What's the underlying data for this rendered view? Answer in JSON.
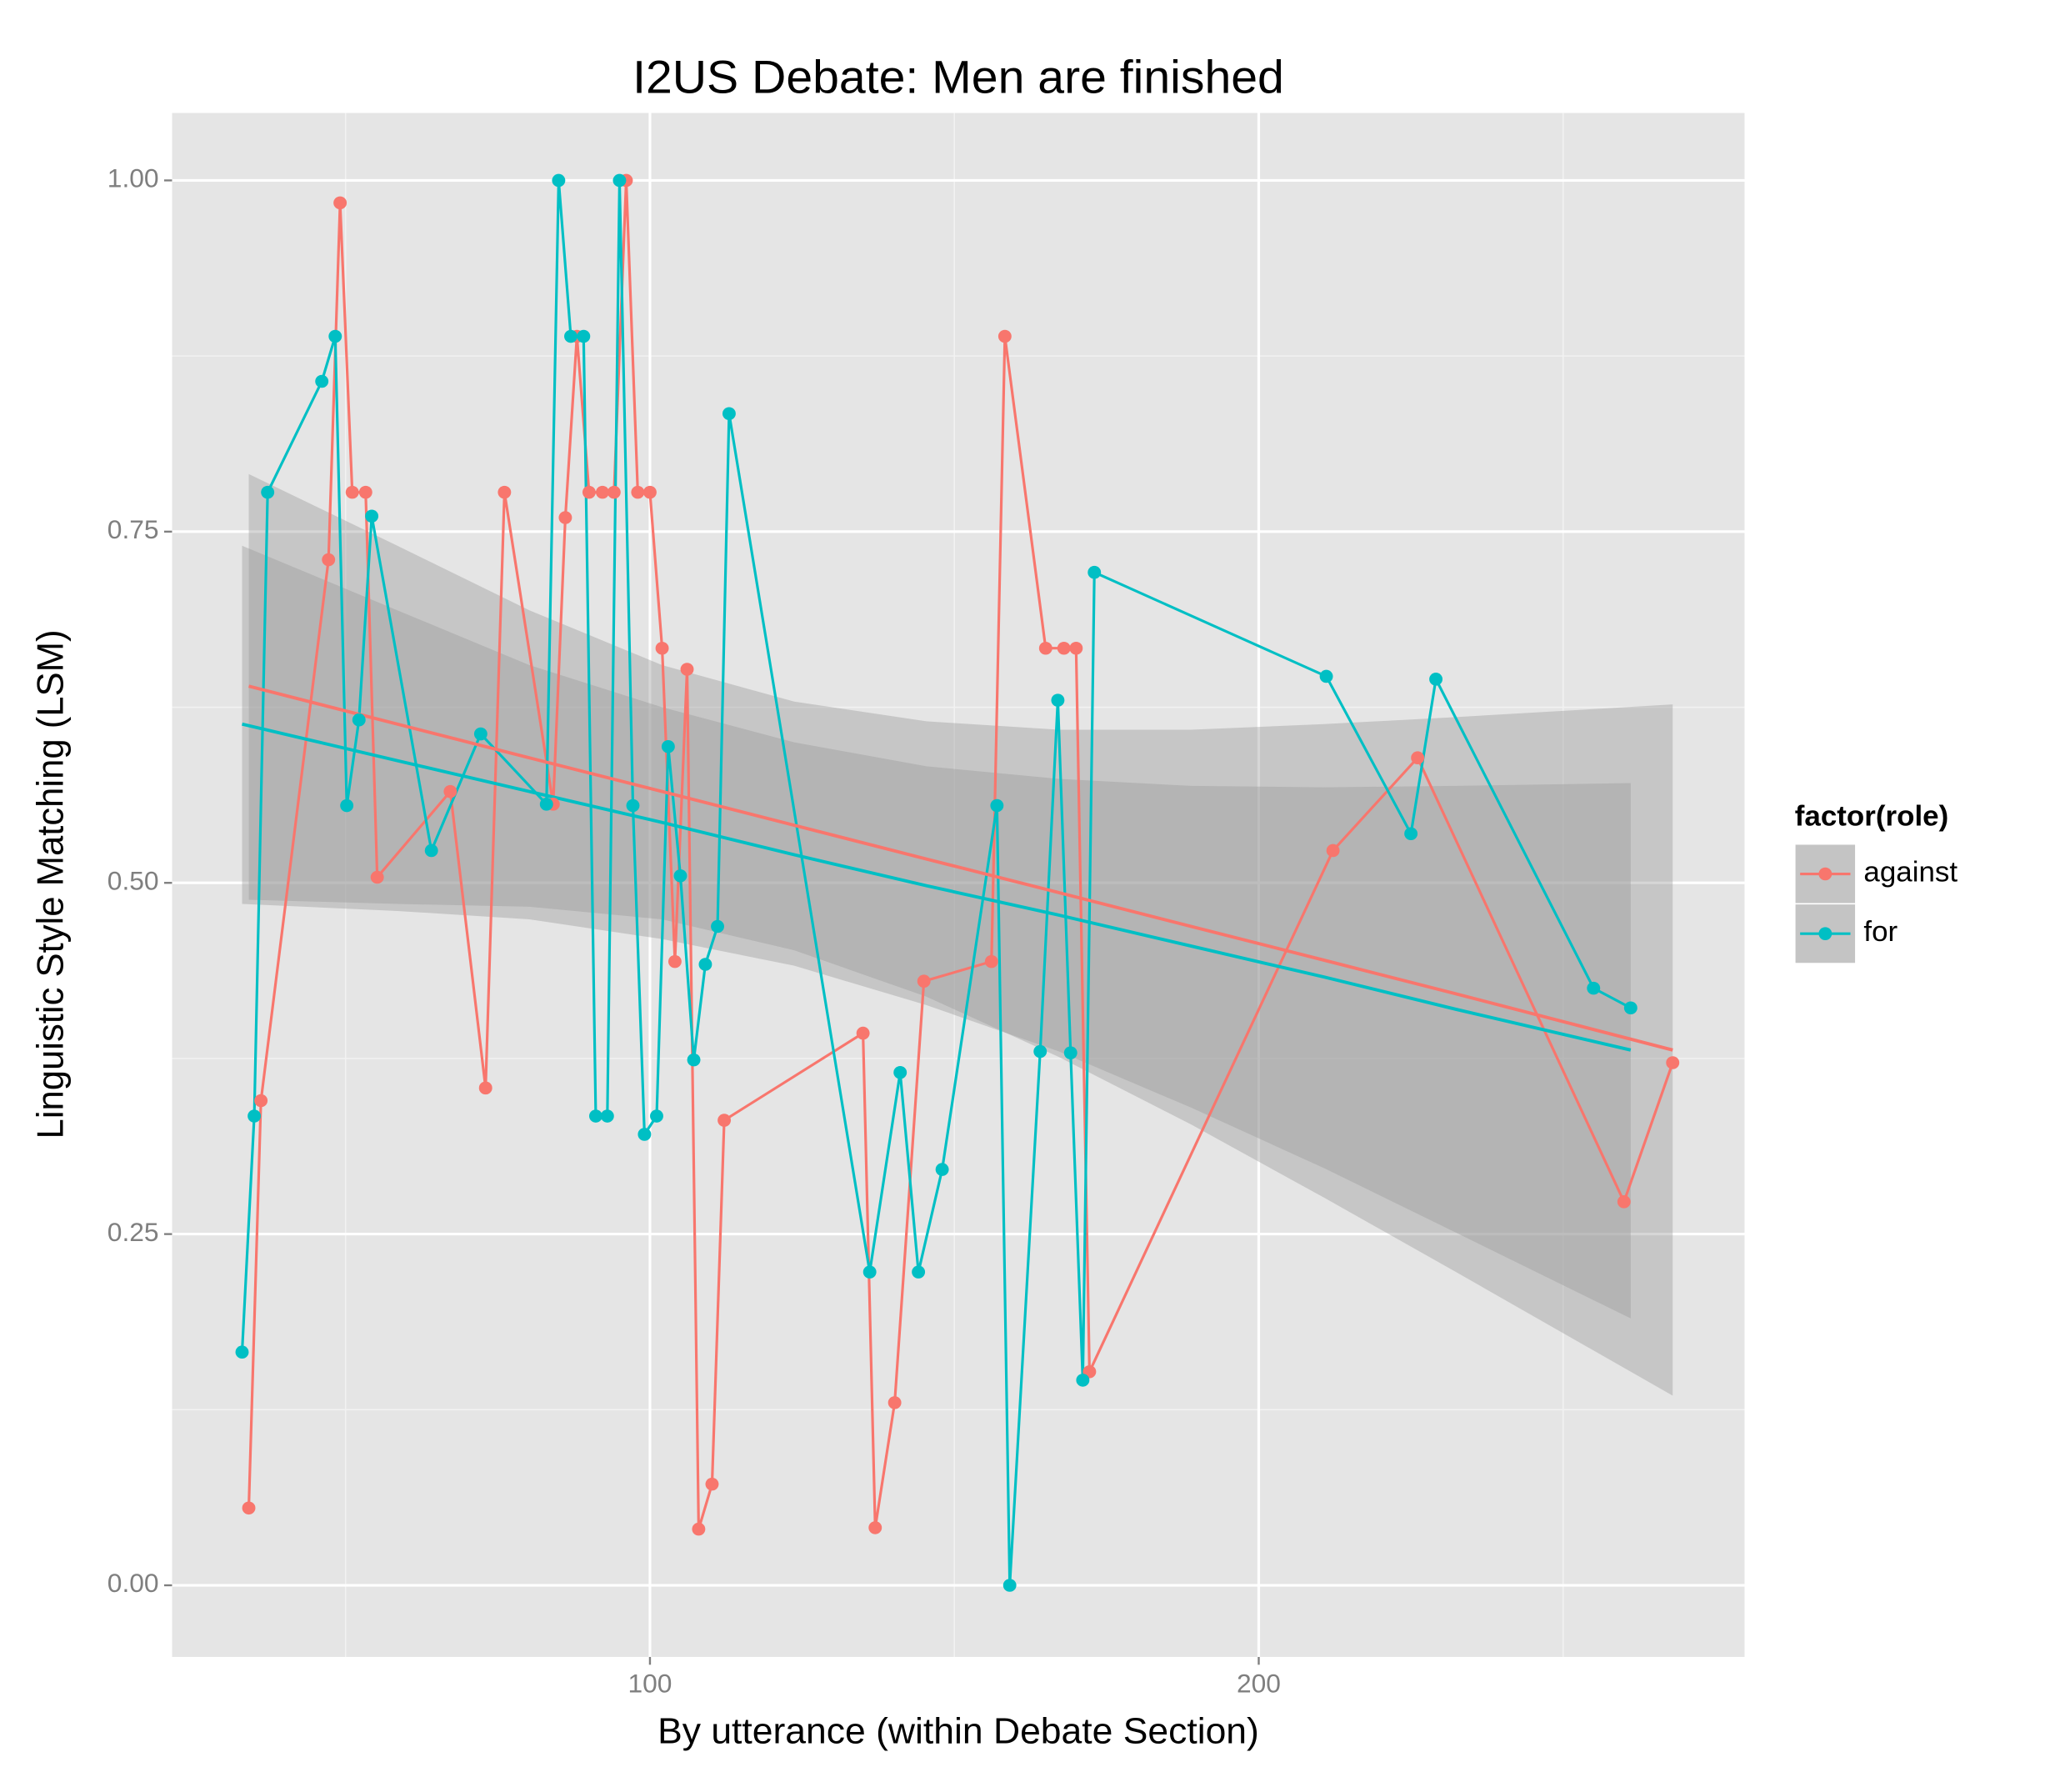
{
  "chart_data": {
    "type": "line",
    "title": "I2US Debate: Men are finished",
    "x_label": "By utterance (within Debate Section)",
    "y_label": "Linguistic Style Matching (LSM)",
    "legend_title": "factor(role)",
    "legend": "right",
    "grid": true,
    "xlim": [
      21.5,
      279.8
    ],
    "ylim": [
      -0.051,
      1.048
    ],
    "xticks": [
      100,
      200
    ],
    "yticks": [
      {
        "value": 0,
        "label": "0.00"
      },
      0.25,
      {
        "value": 0.5,
        "label": "0.50"
      },
      0.75,
      {
        "value": 1,
        "label": "1.00"
      }
    ],
    "series": [
      {
        "name": "against",
        "color": "#F8766D",
        "x": [
          34.1,
          36.1,
          47.2,
          49.1,
          51.1,
          53.3,
          55.2,
          67.2,
          73.0,
          76.1,
          84.1,
          86.1,
          88.0,
          90.0,
          92.2,
          94.1,
          96.1,
          98.0,
          100,
          102.0,
          104.1,
          106.1,
          108.0,
          110.2,
          112.2,
          135.0,
          137.0,
          140.2,
          145.0,
          156.1,
          158.3,
          165.0,
          168.0,
          170.0,
          172.2,
          212.2,
          226.1,
          260.0,
          268.0
        ],
        "values": [
          0.055,
          0.345,
          0.73,
          0.984,
          0.778,
          0.778,
          0.504,
          0.565,
          0.354,
          0.778,
          0.556,
          0.76,
          0.889,
          0.778,
          0.778,
          0.778,
          1.0,
          0.778,
          0.778,
          0.667,
          0.444,
          0.652,
          0.04,
          0.072,
          0.331,
          0.393,
          0.041,
          0.13,
          0.43,
          0.444,
          0.889,
          0.667,
          0.667,
          0.667,
          0.152,
          0.523,
          0.589,
          0.273,
          0.372
        ],
        "fit": {
          "x": [
            34.1,
            58.5,
            80.2,
            102.0,
            123.7,
            145.4,
            167.2,
            188.9,
            210.7,
            232.4,
            268.0
          ],
          "values": [
            0.64,
            0.613,
            0.589,
            0.565,
            0.541,
            0.517,
            0.493,
            0.469,
            0.445,
            0.421,
            0.381
          ],
          "upper": [
            0.791,
            0.74,
            0.694,
            0.655,
            0.629,
            0.615,
            0.609,
            0.609,
            0.613,
            0.618,
            0.627
          ],
          "lower": [
            0.488,
            0.485,
            0.483,
            0.474,
            0.452,
            0.419,
            0.376,
            0.328,
            0.276,
            0.223,
            0.135
          ]
        }
      },
      {
        "name": "for",
        "color": "#00BFC4",
        "x": [
          33.0,
          35.0,
          37.2,
          46.1,
          48.3,
          50.2,
          52.2,
          54.3,
          64.1,
          72.2,
          83.0,
          85.0,
          87.0,
          89.1,
          91.1,
          93.0,
          95.0,
          97.2,
          99.1,
          101.1,
          103.0,
          105.0,
          107.2,
          109.1,
          111.1,
          113.0,
          136.1,
          141.1,
          144.1,
          148.0,
          157.0,
          159.1,
          164.1,
          167.0,
          169.1,
          171.1,
          173.0,
          211.1,
          225.0,
          229.1,
          255.0,
          261.1
        ],
        "values": [
          0.166,
          0.334,
          0.778,
          0.857,
          0.889,
          0.555,
          0.616,
          0.761,
          0.523,
          0.606,
          0.556,
          1.0,
          0.889,
          0.889,
          0.334,
          0.334,
          1.0,
          0.555,
          0.321,
          0.334,
          0.597,
          0.505,
          0.374,
          0.442,
          0.469,
          0.834,
          0.223,
          0.365,
          0.223,
          0.296,
          0.555,
          0.0,
          0.38,
          0.63,
          0.379,
          0.146,
          0.721,
          0.647,
          0.535,
          0.645,
          0.425,
          0.411
        ],
        "fit": {
          "x": [
            33.0,
            58.5,
            80.2,
            102.0,
            123.7,
            145.4,
            167.2,
            188.9,
            210.7,
            232.4,
            261.1
          ],
          "values": [
            0.613,
            0.587,
            0.565,
            0.543,
            0.52,
            0.498,
            0.477,
            0.455,
            0.433,
            0.41,
            0.381
          ],
          "upper": [
            0.74,
            0.694,
            0.655,
            0.625,
            0.6,
            0.583,
            0.574,
            0.569,
            0.568,
            0.569,
            0.571
          ],
          "lower": [
            0.485,
            0.48,
            0.474,
            0.46,
            0.441,
            0.413,
            0.38,
            0.34,
            0.297,
            0.251,
            0.19
          ]
        }
      }
    ]
  }
}
